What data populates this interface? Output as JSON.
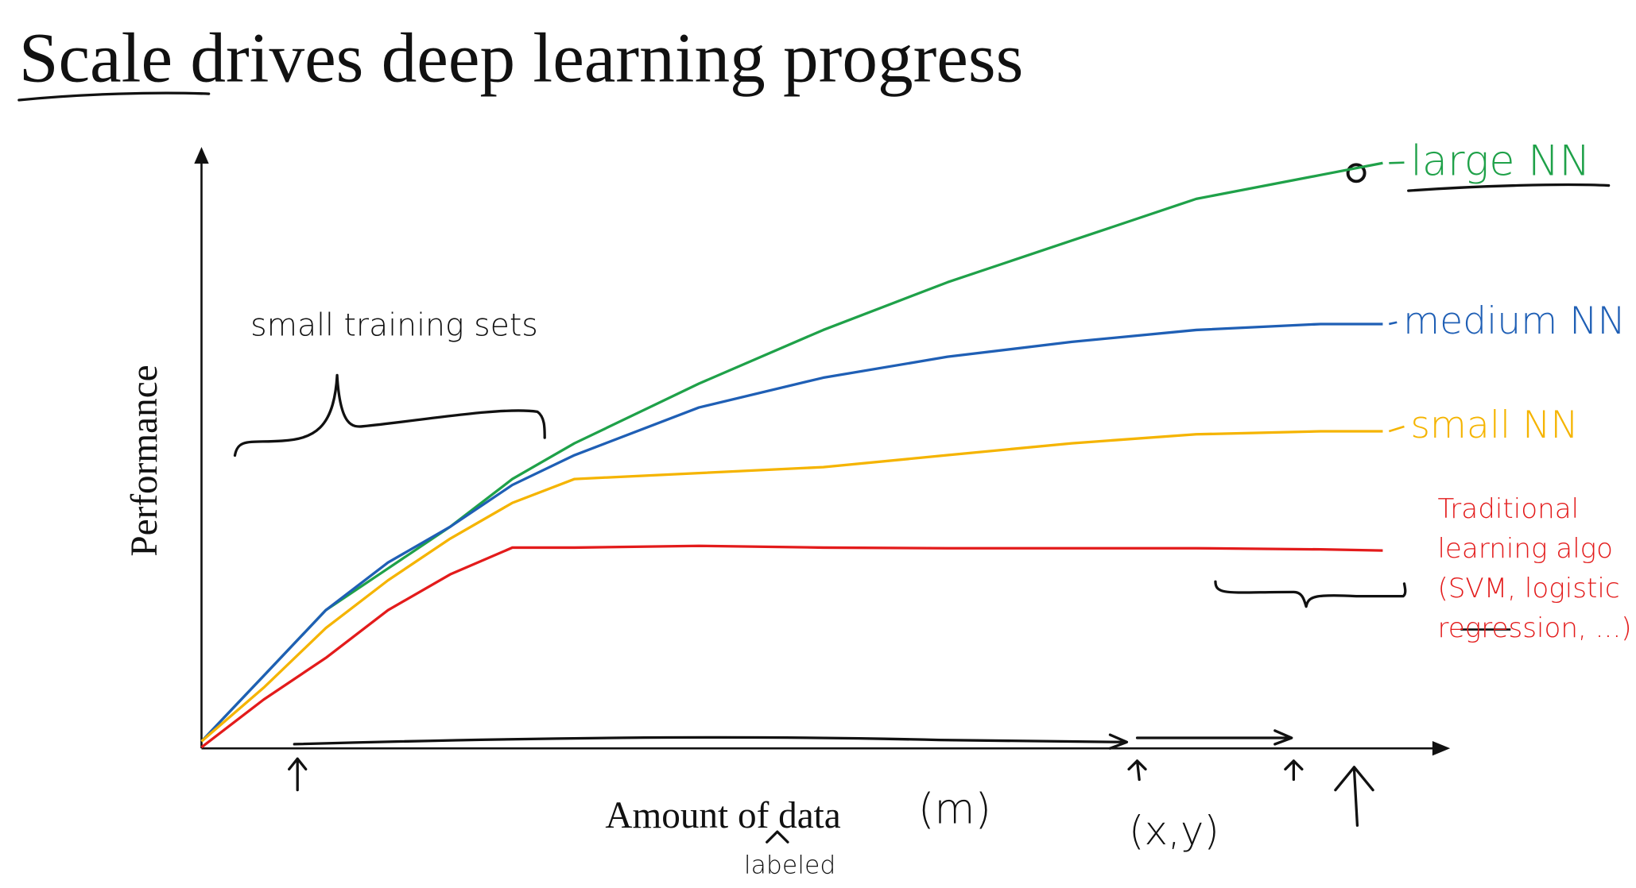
{
  "chart_data": {
    "type": "line",
    "title": "Scale drives deep learning progress",
    "x_label": "Amount of data",
    "y_label": "Performance",
    "x": [
      0,
      5,
      10,
      15,
      20,
      25,
      30,
      40,
      50,
      60,
      70,
      80,
      90,
      95
    ],
    "xlim": [
      0,
      100
    ],
    "ylim": [
      0,
      100
    ],
    "series": [
      {
        "name": "large NN",
        "color": "#1fa149",
        "values": [
          1,
          12,
          23,
          30,
          37,
          45,
          51,
          61,
          70,
          78,
          85,
          92,
          96,
          98
        ]
      },
      {
        "name": "medium NN",
        "color": "#1f5fb5",
        "values": [
          1,
          12,
          23,
          31,
          37,
          44,
          49,
          57,
          62,
          65.5,
          68,
          70,
          71,
          71
        ]
      },
      {
        "name": "small NN",
        "color": "#f5b400",
        "values": [
          1,
          10,
          20,
          28,
          35,
          41,
          45,
          46,
          47,
          49,
          51,
          52.5,
          53,
          53
        ]
      },
      {
        "name": "Traditional learning algo (SVM, logistic regression, ...)",
        "color": "#e31b1b",
        "values": [
          0,
          8,
          15,
          23,
          29,
          33.5,
          33.5,
          33.8,
          33.5,
          33.4,
          33.4,
          33.4,
          33.2,
          33
        ]
      }
    ],
    "annotations": [
      "small training sets",
      "(m)",
      "(x,y)",
      "labeled"
    ]
  }
}
